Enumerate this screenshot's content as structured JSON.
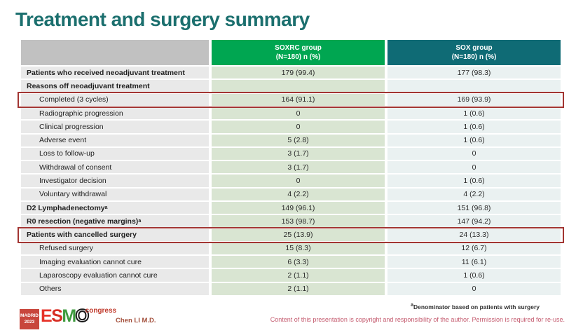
{
  "title": "Treatment and surgery summary",
  "colors": {
    "title_teal": "#1b6f6e",
    "soxrc_header_green": "#00a651",
    "sox_header_teal": "#0f6b75",
    "highlight_box_red": "#a23532"
  },
  "table": {
    "columns": {
      "soxrc": {
        "line1": "SOXRC group",
        "line2": "(N=180)  n (%)"
      },
      "sox": {
        "line1": "SOX group",
        "line2": "(N=180)  n (%)"
      }
    },
    "rows": [
      {
        "label": "Patients who received neoadjuvant treatment",
        "soxrc": "179 (99.4)",
        "sox": "177 (98.3)"
      },
      {
        "label": "Reasons off neoadjuvant treatment",
        "soxrc": "",
        "sox": ""
      },
      {
        "label": "Completed (3 cycles)",
        "soxrc": "164 (91.1)",
        "sox": "169 (93.9)"
      },
      {
        "label": "Radiographic progression",
        "soxrc": "0",
        "sox": "1 (0.6)"
      },
      {
        "label": "Clinical progression",
        "soxrc": "0",
        "sox": "1 (0.6)"
      },
      {
        "label": "Adverse event",
        "soxrc": "5 (2.8)",
        "sox": "1 (0.6)"
      },
      {
        "label": "Loss to follow-up",
        "soxrc": "3 (1.7)",
        "sox": "0"
      },
      {
        "label": "Withdrawal of consent",
        "soxrc": "3 (1.7)",
        "sox": "0"
      },
      {
        "label": "Investigator decision",
        "soxrc": "0",
        "sox": "1 (0.6)"
      },
      {
        "label": "Voluntary withdrawal",
        "soxrc": "4 (2.2)",
        "sox": "4 (2.2)"
      },
      {
        "label": "D2 Lymphadenectomy",
        "sup": "a",
        "soxrc": "149 (96.1)",
        "sox": "151 (96.8)"
      },
      {
        "label": "R0 resection (negative margins)",
        "sup": "a",
        "soxrc": "153 (98.7)",
        "sox": "147 (94.2)"
      },
      {
        "label": "Patients with cancelled surgery",
        "soxrc": "25 (13.9)",
        "sox": "24 (13.3)"
      },
      {
        "label": "Refused surgery",
        "soxrc": "15 (8.3)",
        "sox": "12 (6.7)"
      },
      {
        "label": "Imaging evaluation cannot cure",
        "soxrc": "6 (3.3)",
        "sox": "11 (6.1)"
      },
      {
        "label": "Laparoscopy evaluation cannot cure",
        "soxrc": "2 (1.1)",
        "sox": "1 (0.6)"
      },
      {
        "label": "Others",
        "soxrc": "2 (1.1)",
        "sox": "0"
      }
    ]
  },
  "footnote": {
    "sup": "a",
    "text": "Denominator based on patients with surgery"
  },
  "footer": {
    "logo": {
      "venue_line1": "MADRID",
      "venue_line2": "2023",
      "letters": {
        "e": "E",
        "s": "S",
        "m": "M",
        "o": "O"
      },
      "congress": "congress"
    },
    "author": "Chen LI M.D.",
    "copyright": "Content of this presentation is copyright and responsibility of the author.  Permission is required for re-use."
  }
}
